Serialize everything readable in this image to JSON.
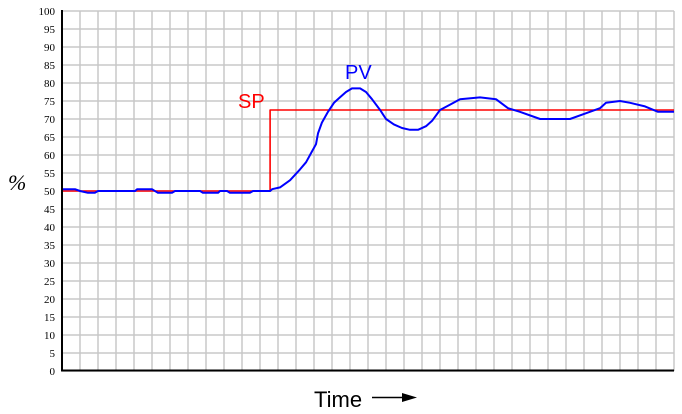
{
  "chart_data": {
    "type": "line",
    "title": "",
    "xlabel": "Time",
    "ylabel": "%",
    "ylim": [
      0,
      100
    ],
    "xlim": [
      0,
      34
    ],
    "yticks": [
      "0",
      "5",
      "10",
      "15",
      "20",
      "25",
      "30",
      "35",
      "40",
      "45",
      "50",
      "55",
      "60",
      "65",
      "70",
      "75",
      "80",
      "85",
      "90",
      "95",
      "100"
    ],
    "grid": true,
    "series": [
      {
        "name": "SP",
        "color": "#ff0000",
        "x": [
          0,
          11.56,
          11.56,
          34
        ],
        "y": [
          50,
          50,
          72.5,
          72.5
        ]
      },
      {
        "name": "PV",
        "color": "#0000ff",
        "x": [
          0,
          0.72,
          1,
          1.44,
          1.83,
          2,
          4.06,
          4.17,
          5,
          5.33,
          6.11,
          6.28,
          7.67,
          7.83,
          8.67,
          8.78,
          9.17,
          9.33,
          10.44,
          10.61,
          11.56,
          11.67,
          12.11,
          12.67,
          13.22,
          13.56,
          13.89,
          14.11,
          14.22,
          14.44,
          14.78,
          15.11,
          15.44,
          15.78,
          16.11,
          16.56,
          16.89,
          17.22,
          17.67,
          18,
          18.44,
          18.89,
          19.33,
          19.78,
          20.22,
          20.56,
          21,
          21.56,
          22.11,
          23.22,
          24.11,
          24.78,
          25.44,
          26.56,
          28.22,
          29.06,
          29.89,
          30.22,
          31,
          31.56,
          32.39,
          33.11,
          34
        ],
        "y": [
          50.5,
          50.5,
          50,
          49.5,
          49.5,
          50,
          50,
          50.5,
          50.5,
          49.5,
          49.5,
          50,
          50,
          49.5,
          49.5,
          50,
          50,
          49.5,
          49.5,
          50,
          50,
          50.5,
          51,
          53,
          56,
          58,
          61,
          63,
          66,
          69,
          72,
          74.5,
          76,
          77.5,
          78.5,
          78.5,
          77.5,
          75.5,
          72.5,
          70,
          68.5,
          67.5,
          67,
          67,
          68,
          69.5,
          72.5,
          74,
          75.5,
          76,
          75.5,
          73,
          72,
          70,
          70,
          71.5,
          73,
          74.5,
          75,
          74.5,
          73.5,
          72,
          72
        ]
      }
    ],
    "annotations": [
      {
        "text": "SP",
        "color": "#ff0000"
      },
      {
        "text": "PV",
        "color": "#0000ff"
      }
    ],
    "x_arrow": "right-arrow-icon"
  }
}
